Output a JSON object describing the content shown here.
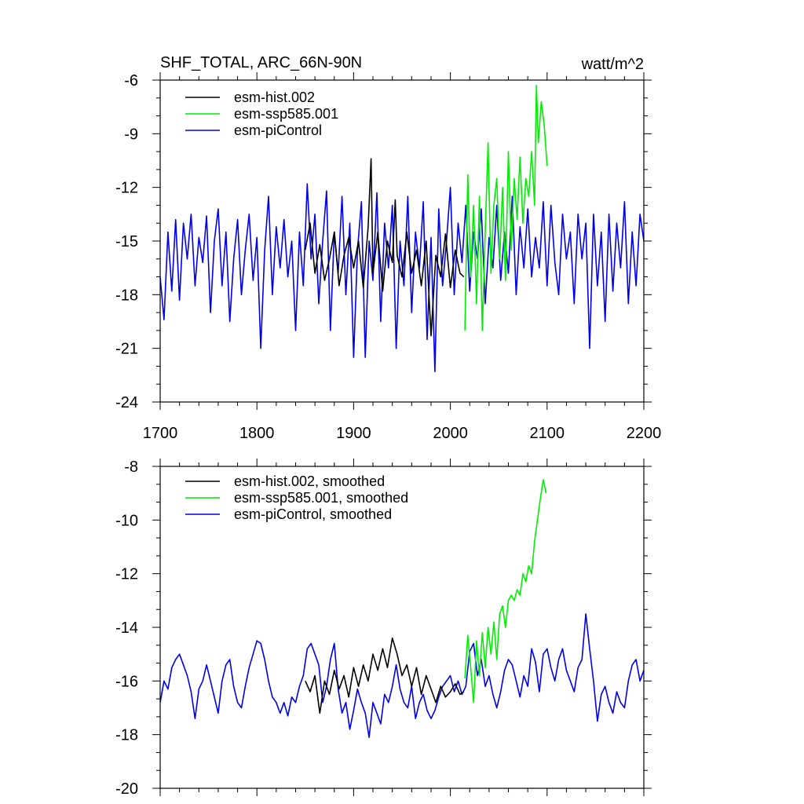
{
  "chart_data": [
    {
      "type": "line",
      "title": "SHF_TOTAL, ARC_66N-90N",
      "units": "watt/m^2",
      "xlim": [
        1700,
        2200
      ],
      "ylim": [
        -24,
        -6
      ],
      "xticks": [
        1700,
        1800,
        1900,
        2000,
        2100,
        2200
      ],
      "xtick_labels": [
        "1700",
        "1800",
        "1900",
        "2000",
        "2100",
        "2200"
      ],
      "yticks": [
        -24,
        -21,
        -18,
        -15,
        -12,
        -9,
        -6
      ],
      "ytick_labels": [
        "-24",
        "-21",
        "-18",
        "-15",
        "-12",
        "-9",
        "-6"
      ],
      "legend_position": "top-left",
      "series": [
        {
          "name": "esm-hist.002",
          "color": "#000000",
          "x": [
            1850,
            1855,
            1860,
            1865,
            1870,
            1875,
            1880,
            1885,
            1890,
            1895,
            1900,
            1905,
            1910,
            1915,
            1918,
            1920,
            1925,
            1930,
            1935,
            1940,
            1943,
            1945,
            1950,
            1955,
            1960,
            1965,
            1970,
            1975,
            1980,
            1985,
            1990,
            1995,
            2000,
            2005,
            2010,
            2014
          ],
          "y": [
            -15.5,
            -14.0,
            -16.8,
            -15.2,
            -17.2,
            -16.0,
            -14.5,
            -17.5,
            -15.8,
            -14.8,
            -16.5,
            -15.0,
            -17.6,
            -14.2,
            -10.4,
            -16.8,
            -14.5,
            -17.8,
            -15.0,
            -16.2,
            -12.7,
            -15.8,
            -17.0,
            -14.5,
            -16.8,
            -15.5,
            -17.5,
            -15.0,
            -20.3,
            -15.8,
            -17.0,
            -14.6,
            -17.6,
            -15.5,
            -16.8,
            -17.0
          ]
        },
        {
          "name": "esm-ssp585.001",
          "color": "#00ee00",
          "x": [
            2015,
            2018,
            2021,
            2024,
            2027,
            2030,
            2033,
            2036,
            2039,
            2042,
            2045,
            2048,
            2051,
            2054,
            2057,
            2060,
            2063,
            2066,
            2069,
            2072,
            2075,
            2078,
            2081,
            2084,
            2087,
            2089,
            2091,
            2094,
            2097,
            2100
          ],
          "y": [
            -20.0,
            -11.3,
            -17.0,
            -13.0,
            -18.5,
            -12.5,
            -20.0,
            -14.5,
            -9.5,
            -16.8,
            -13.0,
            -11.5,
            -16.0,
            -12.0,
            -17.2,
            -10.0,
            -15.5,
            -11.5,
            -13.8,
            -10.3,
            -14.0,
            -11.5,
            -12.5,
            -10.0,
            -13.0,
            -6.3,
            -9.5,
            -7.2,
            -8.5,
            -10.8
          ]
        },
        {
          "name": "esm-piControl",
          "color": "#0000ee",
          "x": [
            1700,
            1704,
            1708,
            1712,
            1716,
            1720,
            1724,
            1728,
            1732,
            1736,
            1740,
            1744,
            1748,
            1752,
            1756,
            1760,
            1764,
            1768,
            1772,
            1776,
            1780,
            1784,
            1788,
            1792,
            1796,
            1800,
            1804,
            1808,
            1812,
            1816,
            1820,
            1824,
            1828,
            1832,
            1836,
            1840,
            1844,
            1848,
            1852,
            1856,
            1860,
            1864,
            1868,
            1872,
            1876,
            1880,
            1884,
            1888,
            1892,
            1896,
            1900,
            1904,
            1908,
            1912,
            1916,
            1920,
            1924,
            1928,
            1932,
            1936,
            1940,
            1944,
            1948,
            1952,
            1956,
            1960,
            1964,
            1968,
            1972,
            1976,
            1980,
            1984,
            1988,
            1992,
            1996,
            2000,
            2004,
            2008,
            2012,
            2016,
            2020,
            2024,
            2028,
            2032,
            2036,
            2040,
            2044,
            2048,
            2052,
            2056,
            2060,
            2064,
            2068,
            2072,
            2076,
            2080,
            2084,
            2088,
            2092,
            2096,
            2100,
            2104,
            2108,
            2112,
            2116,
            2120,
            2124,
            2128,
            2132,
            2136,
            2140,
            2144,
            2148,
            2152,
            2156,
            2160,
            2164,
            2168,
            2172,
            2176,
            2180,
            2184,
            2188,
            2192,
            2196,
            2200
          ],
          "y": [
            -17.0,
            -19.4,
            -14.5,
            -17.8,
            -13.8,
            -18.3,
            -14.0,
            -16.0,
            -13.5,
            -17.5,
            -14.8,
            -16.2,
            -13.6,
            -19.0,
            -15.0,
            -13.2,
            -17.5,
            -14.5,
            -19.5,
            -16.0,
            -13.8,
            -18.0,
            -15.5,
            -13.5,
            -17.2,
            -14.8,
            -21.0,
            -15.5,
            -12.5,
            -18.0,
            -14.2,
            -16.5,
            -13.8,
            -17.0,
            -15.0,
            -20.0,
            -14.5,
            -17.5,
            -11.8,
            -16.0,
            -13.5,
            -18.5,
            -15.0,
            -12.2,
            -20.0,
            -14.5,
            -16.8,
            -12.5,
            -18.0,
            -14.0,
            -21.5,
            -15.5,
            -12.8,
            -21.5,
            -15.0,
            -17.2,
            -12.3,
            -19.5,
            -14.0,
            -16.5,
            -13.0,
            -21.0,
            -15.0,
            -17.5,
            -12.5,
            -19.0,
            -14.5,
            -16.5,
            -12.8,
            -20.5,
            -14.8,
            -22.3,
            -13.2,
            -17.5,
            -15.0,
            -12.0,
            -18.0,
            -14.0,
            -16.2,
            -13.0,
            -17.8,
            -14.5,
            -16.0,
            -13.2,
            -18.5,
            -14.8,
            -16.5,
            -13.0,
            -17.2,
            -14.5,
            -16.8,
            -12.5,
            -18.0,
            -14.2,
            -16.5,
            -13.2,
            -17.0,
            -14.8,
            -16.5,
            -12.8,
            -17.5,
            -13.0,
            -16.2,
            -18.0,
            -13.5,
            -16.0,
            -14.5,
            -18.5,
            -13.5,
            -16.0,
            -14.0,
            -21.0,
            -13.5,
            -17.5,
            -14.5,
            -19.5,
            -13.5,
            -17.8,
            -14.0,
            -16.5,
            -12.8,
            -18.5,
            -14.5,
            -17.5,
            -13.5,
            -15.0
          ]
        }
      ]
    },
    {
      "type": "line",
      "title": "",
      "xlim": [
        1700,
        2200
      ],
      "ylim": [
        -20,
        -8
      ],
      "xticks": [
        1700,
        1800,
        1900,
        2000,
        2100,
        2200
      ],
      "yticks": [
        -20,
        -18,
        -16,
        -14,
        -12,
        -10,
        -8
      ],
      "ytick_labels": [
        "-20",
        "-18",
        "-16",
        "-14",
        "-12",
        "-10",
        "-8"
      ],
      "legend_position": "top-left",
      "series": [
        {
          "name": "esm-hist.002, smoothed",
          "color": "#000000",
          "x": [
            1850,
            1855,
            1860,
            1865,
            1870,
            1875,
            1880,
            1885,
            1890,
            1895,
            1900,
            1905,
            1910,
            1915,
            1920,
            1925,
            1930,
            1935,
            1940,
            1945,
            1950,
            1955,
            1960,
            1965,
            1970,
            1975,
            1980,
            1985,
            1990,
            1995,
            2000,
            2005,
            2010,
            2014
          ],
          "y": [
            -16.0,
            -16.4,
            -15.8,
            -17.2,
            -16.0,
            -16.5,
            -15.6,
            -16.3,
            -15.8,
            -16.6,
            -15.5,
            -16.2,
            -15.4,
            -16.0,
            -15.0,
            -15.6,
            -14.8,
            -15.5,
            -14.4,
            -15.0,
            -15.8,
            -15.4,
            -16.2,
            -15.5,
            -16.5,
            -15.8,
            -16.3,
            -16.8,
            -16.2,
            -16.6,
            -16.4,
            -16.1,
            -16.5,
            -16.4
          ]
        },
        {
          "name": "esm-ssp585.001, smoothed",
          "color": "#00ee00",
          "x": [
            2015,
            2018,
            2021,
            2024,
            2027,
            2030,
            2033,
            2036,
            2039,
            2042,
            2045,
            2048,
            2051,
            2054,
            2057,
            2060,
            2063,
            2066,
            2069,
            2072,
            2075,
            2078,
            2081,
            2084,
            2087,
            2090,
            2093,
            2096,
            2099
          ],
          "y": [
            -15.9,
            -14.3,
            -15.5,
            -16.8,
            -14.5,
            -15.8,
            -14.2,
            -15.5,
            -14.0,
            -15.0,
            -13.8,
            -15.2,
            -13.5,
            -13.2,
            -14.0,
            -13.0,
            -12.8,
            -13.0,
            -12.6,
            -12.8,
            -12.0,
            -12.3,
            -11.7,
            -12.0,
            -10.8,
            -10.0,
            -9.2,
            -8.5,
            -9.0
          ]
        },
        {
          "name": "esm-piControl, smoothed",
          "color": "#0000ee",
          "x": [
            1700,
            1704,
            1708,
            1712,
            1716,
            1720,
            1724,
            1728,
            1732,
            1736,
            1740,
            1744,
            1748,
            1752,
            1756,
            1760,
            1764,
            1768,
            1772,
            1776,
            1780,
            1784,
            1788,
            1792,
            1796,
            1800,
            1804,
            1808,
            1812,
            1816,
            1820,
            1824,
            1828,
            1832,
            1836,
            1840,
            1844,
            1848,
            1852,
            1856,
            1860,
            1864,
            1868,
            1872,
            1876,
            1880,
            1884,
            1888,
            1892,
            1896,
            1900,
            1904,
            1908,
            1912,
            1916,
            1920,
            1924,
            1928,
            1932,
            1936,
            1940,
            1944,
            1948,
            1952,
            1956,
            1960,
            1964,
            1968,
            1972,
            1976,
            1980,
            1984,
            1988,
            1992,
            1996,
            2000,
            2004,
            2008,
            2012,
            2016,
            2020,
            2024,
            2028,
            2032,
            2036,
            2040,
            2044,
            2048,
            2052,
            2056,
            2060,
            2064,
            2068,
            2072,
            2076,
            2080,
            2084,
            2088,
            2092,
            2096,
            2100,
            2104,
            2108,
            2112,
            2116,
            2120,
            2124,
            2128,
            2132,
            2136,
            2140,
            2144,
            2148,
            2152,
            2156,
            2160,
            2164,
            2168,
            2172,
            2176,
            2180,
            2184,
            2188,
            2192,
            2196,
            2200
          ],
          "y": [
            -16.8,
            -16.0,
            -16.3,
            -15.5,
            -15.2,
            -15.0,
            -15.4,
            -15.8,
            -16.4,
            -17.4,
            -16.3,
            -16.0,
            -15.4,
            -16.0,
            -16.6,
            -17.2,
            -16.0,
            -15.4,
            -15.2,
            -16.2,
            -16.8,
            -17.0,
            -16.2,
            -15.5,
            -15.0,
            -14.5,
            -14.6,
            -15.2,
            -16.0,
            -16.6,
            -16.8,
            -17.2,
            -16.8,
            -17.3,
            -16.6,
            -16.8,
            -16.2,
            -15.8,
            -14.8,
            -14.6,
            -15.0,
            -15.4,
            -16.8,
            -16.2,
            -15.2,
            -14.6,
            -16.3,
            -17.2,
            -16.8,
            -17.8,
            -17.1,
            -16.3,
            -16.8,
            -17.2,
            -18.1,
            -16.8,
            -17.2,
            -17.6,
            -16.5,
            -16.8,
            -16.2,
            -15.4,
            -16.3,
            -16.8,
            -17.0,
            -16.2,
            -17.4,
            -16.8,
            -16.5,
            -17.1,
            -17.4,
            -17.1,
            -16.6,
            -16.2,
            -16.0,
            -15.8,
            -16.4,
            -16.0,
            -16.5,
            -16.2,
            -14.9,
            -14.6,
            -15.8,
            -15.2,
            -16.2,
            -15.8,
            -16.5,
            -17.0,
            -16.4,
            -15.6,
            -15.2,
            -15.4,
            -16.0,
            -16.6,
            -15.8,
            -16.2,
            -14.8,
            -15.3,
            -16.4,
            -15.0,
            -14.8,
            -15.5,
            -16.0,
            -15.2,
            -14.8,
            -15.6,
            -16.0,
            -16.4,
            -15.5,
            -15.2,
            -13.5,
            -14.8,
            -16.0,
            -17.5,
            -16.5,
            -16.2,
            -16.8,
            -17.2,
            -16.4,
            -16.8,
            -17.0,
            -16.0,
            -15.4,
            -15.2,
            -16.0,
            -15.6
          ]
        }
      ]
    }
  ]
}
